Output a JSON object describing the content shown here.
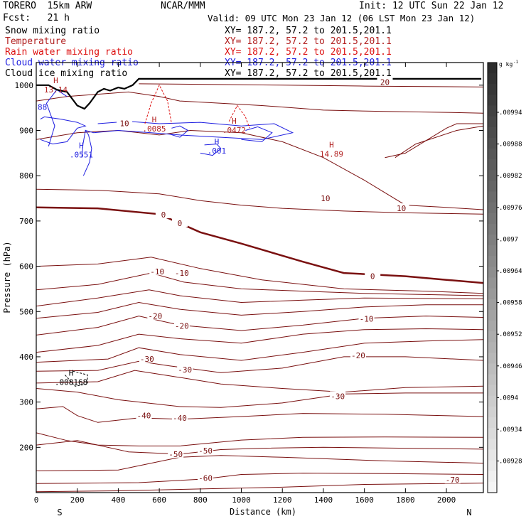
{
  "header": {
    "model": "TORERO  15km ARW",
    "org": "NCAR/MMM",
    "init": "Init: 12 UTC Sun 22 Jan 12",
    "fcst": "Fcst:   21 h",
    "valid": "Valid: 09 UTC Mon 23 Jan 12 (06 LST Mon 23 Jan 12)"
  },
  "fields": [
    {
      "name": "Snow mixing ratio",
      "xy": "XY= 187.2, 57.2 to 201.5,201.1",
      "color": "#000000"
    },
    {
      "name": "Temperature",
      "xy": "XY= 187.2, 57.2 to 201.5,201.1",
      "color": "#b22222"
    },
    {
      "name": "Rain water mixing ratio",
      "xy": "XY= 187.2, 57.2 to 201.5,201.1",
      "color": "#dd1111"
    },
    {
      "name": "Cloud water mixing ratio",
      "xy": "XY= 187.2, 57.2 to 201.5,201.1",
      "color": "#1e1ee0"
    },
    {
      "name": "Cloud ice mixing ratio",
      "xy": "XY= 187.2, 57.2 to 201.5,201.1",
      "color": "#000000"
    }
  ],
  "chart_data": {
    "type": "cross-section contour",
    "xlabel": "Distance (km)",
    "ylabel": "Pressure (hPa)",
    "xlim": [
      0,
      2180
    ],
    "ylim": [
      1050,
      100
    ],
    "x_ticks": [
      0,
      200,
      400,
      600,
      800,
      1000,
      1200,
      1400,
      1600,
      1800,
      2000
    ],
    "y_ticks": [
      200,
      300,
      400,
      500,
      600,
      700,
      800,
      900,
      1000
    ],
    "x_end_labels": {
      "left": "S",
      "right": "N"
    },
    "colorbar": {
      "units": "g kg",
      "units_exp": "-1",
      "ticks": [
        ".00994",
        ".00988",
        ".00982",
        ".00976",
        ".0097",
        ".00964",
        ".00958",
        ".00952",
        ".00946",
        ".0094",
        ".00934",
        ".00928"
      ]
    },
    "temperature_labels": [
      {
        "text": "-60",
        "x": 825,
        "p": 132
      },
      {
        "text": "-70",
        "x": 2030,
        "p": 128
      },
      {
        "text": "-50",
        "x": 680,
        "p": 185
      },
      {
        "text": "-50",
        "x": 825,
        "p": 193
      },
      {
        "text": "-40",
        "x": 525,
        "p": 270
      },
      {
        "text": "-40",
        "x": 700,
        "p": 265
      },
      {
        "text": "-30",
        "x": 1470,
        "p": 313
      },
      {
        "text": "-30",
        "x": 725,
        "p": 372
      },
      {
        "text": "-30",
        "x": 540,
        "p": 395
      },
      {
        "text": "-20",
        "x": 1570,
        "p": 403
      },
      {
        "text": "-20",
        "x": 710,
        "p": 468
      },
      {
        "text": "-20",
        "x": 580,
        "p": 490
      },
      {
        "text": "-10",
        "x": 1610,
        "p": 484
      },
      {
        "text": "-10",
        "x": 710,
        "p": 585
      },
      {
        "text": "-10",
        "x": 590,
        "p": 588
      },
      {
        "text": "0",
        "x": 1640,
        "p": 578
      },
      {
        "text": "0",
        "x": 700,
        "p": 695
      },
      {
        "text": "0",
        "x": 620,
        "p": 714
      },
      {
        "text": "10",
        "x": 1410,
        "p": 750
      },
      {
        "text": "10",
        "x": 1780,
        "p": 728
      },
      {
        "text": "10",
        "x": 430,
        "p": 916
      },
      {
        "text": "20",
        "x": 1700,
        "p": 1007
      }
    ],
    "extrema": [
      {
        "label": "H",
        "value": ".008168",
        "x": 170,
        "p": 355,
        "color": "#000000"
      },
      {
        "label": "H",
        "value": ".0551",
        "x": 220,
        "p": 858,
        "color": "#1e1ee0"
      },
      {
        "label": "H",
        "value": ".001",
        "x": 880,
        "p": 866,
        "color": "#1e1ee0"
      },
      {
        "label": "H",
        "value": "14.89",
        "x": 1440,
        "p": 859,
        "color": "#b22222"
      },
      {
        "label": "H",
        "value": "13.14",
        "x": 95,
        "p": 1001,
        "color": "#b22222"
      },
      {
        "label": "H",
        "value": ".0085",
        "x": 575,
        "p": 915,
        "color": "#b22222"
      },
      {
        "label": "H",
        "value": ".0472",
        "x": 965,
        "p": 912,
        "color": "#b22222"
      }
    ],
    "cloud_water_edge_label": "88",
    "terrain_surface_p": [
      [
        0,
        1000
      ],
      [
        60,
        1000
      ],
      [
        100,
        990
      ],
      [
        150,
        985
      ],
      [
        200,
        955
      ],
      [
        235,
        948
      ],
      [
        260,
        960
      ],
      [
        300,
        985
      ],
      [
        330,
        992
      ],
      [
        360,
        988
      ],
      [
        400,
        995
      ],
      [
        430,
        992
      ],
      [
        470,
        1000
      ],
      [
        500,
        1014
      ],
      [
        600,
        1014
      ],
      [
        2170,
        1014
      ]
    ]
  }
}
